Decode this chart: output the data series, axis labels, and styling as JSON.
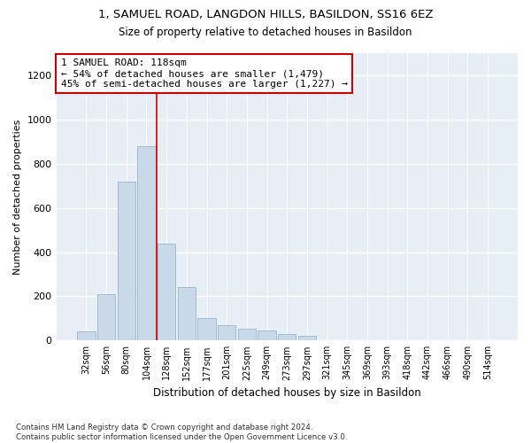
{
  "title_line1": "1, SAMUEL ROAD, LANGDON HILLS, BASILDON, SS16 6EZ",
  "title_line2": "Size of property relative to detached houses in Basildon",
  "xlabel": "Distribution of detached houses by size in Basildon",
  "ylabel": "Number of detached properties",
  "bar_color": "#c9d9ea",
  "bar_edge_color": "#9ab5cc",
  "bg_color": "#e8eef5",
  "grid_color": "#ffffff",
  "annotation_text": "1 SAMUEL ROAD: 118sqm\n← 54% of detached houses are smaller (1,479)\n45% of semi-detached houses are larger (1,227) →",
  "categories": [
    "32sqm",
    "56sqm",
    "80sqm",
    "104sqm",
    "128sqm",
    "152sqm",
    "177sqm",
    "201sqm",
    "225sqm",
    "249sqm",
    "273sqm",
    "297sqm",
    "321sqm",
    "345sqm",
    "369sqm",
    "393sqm",
    "418sqm",
    "442sqm",
    "466sqm",
    "490sqm",
    "514sqm"
  ],
  "bar_values": [
    40,
    210,
    720,
    880,
    440,
    240,
    100,
    70,
    55,
    45,
    30,
    20,
    0,
    0,
    0,
    0,
    0,
    0,
    0,
    0,
    0
  ],
  "ylim": [
    0,
    1300
  ],
  "yticks": [
    0,
    200,
    400,
    600,
    800,
    1000,
    1200
  ],
  "red_line_index": 3.5,
  "footnote": "Contains HM Land Registry data © Crown copyright and database right 2024.\nContains public sector information licensed under the Open Government Licence v3.0.",
  "annotation_box_color": "#ffffff",
  "annotation_box_edge": "#cc0000",
  "red_line_color": "#cc0000",
  "fig_bg": "#ffffff"
}
